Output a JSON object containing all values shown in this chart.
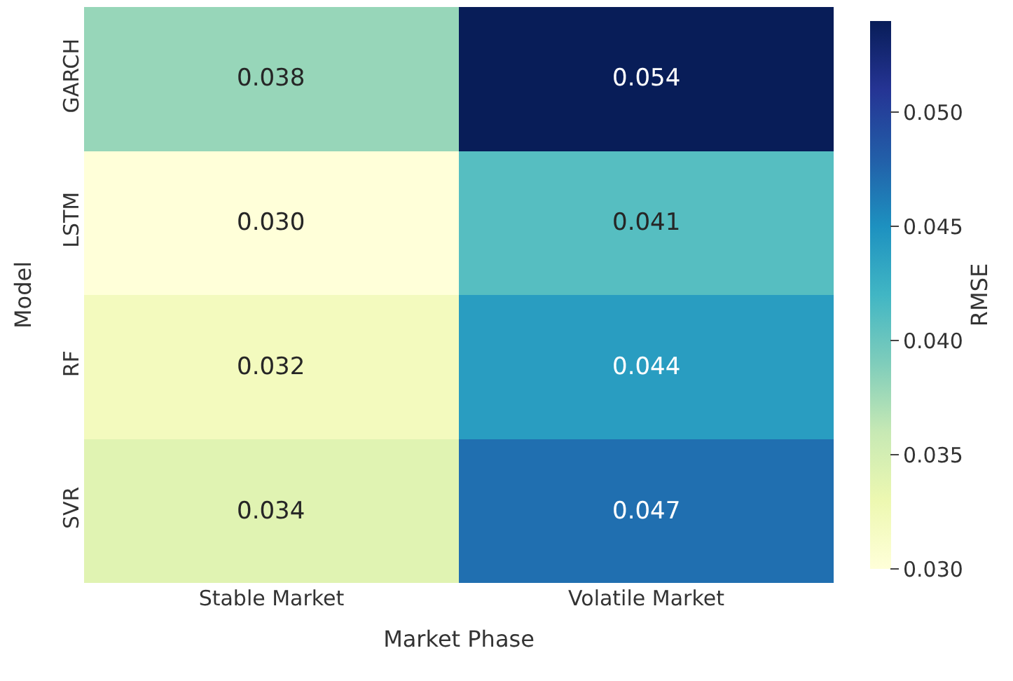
{
  "chart_data": {
    "type": "heatmap",
    "xlabel": "Market Phase",
    "ylabel": "Model",
    "clabel": "RMSE",
    "categories": [
      "Stable Market",
      "Volatile Market"
    ],
    "y_categories": [
      "GARCH",
      "LSTM",
      "RF",
      "SVR"
    ],
    "cells": [
      [
        0.038,
        0.054
      ],
      [
        0.03,
        0.041
      ],
      [
        0.032,
        0.044
      ],
      [
        0.034,
        0.047
      ]
    ],
    "cell_labels": [
      [
        "0.038",
        "0.054"
      ],
      [
        "0.030",
        "0.041"
      ],
      [
        "0.032",
        "0.044"
      ],
      [
        "0.034",
        "0.047"
      ]
    ],
    "clim": [
      0.03,
      0.054
    ],
    "cticks": [
      {
        "value": 0.03,
        "label": "0.030"
      },
      {
        "value": 0.035,
        "label": "0.035"
      },
      {
        "value": 0.04,
        "label": "0.040"
      },
      {
        "value": 0.045,
        "label": "0.045"
      },
      {
        "value": 0.05,
        "label": "0.050"
      }
    ]
  }
}
